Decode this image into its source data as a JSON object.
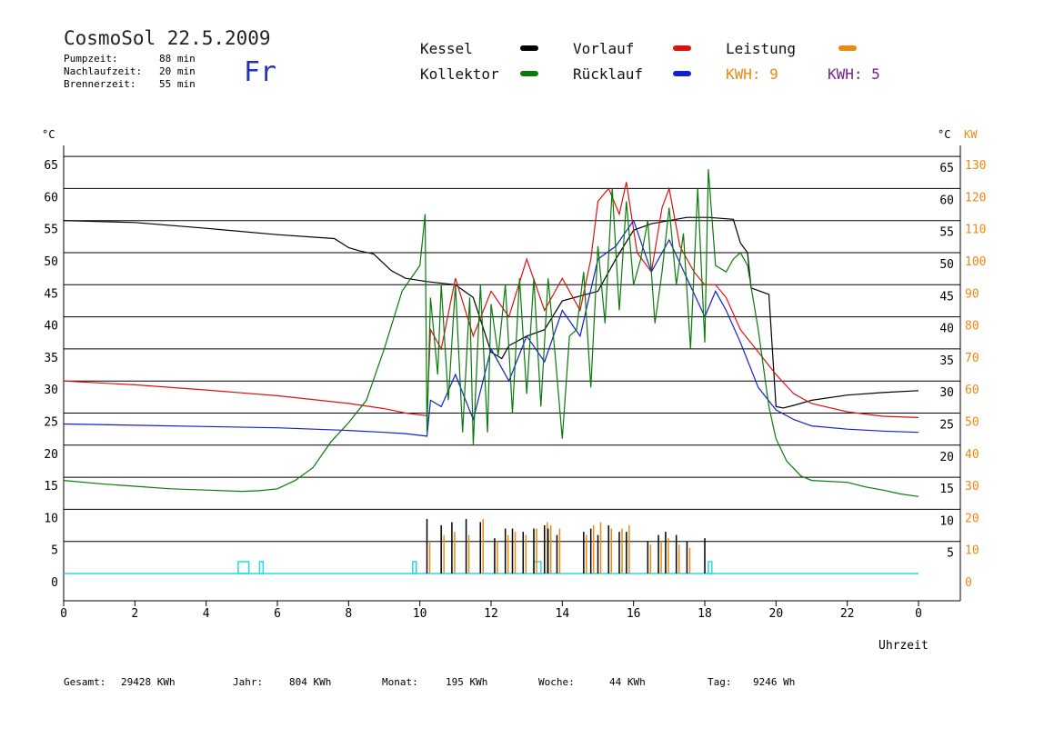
{
  "header": {
    "title": "CosmoSol 22.5.2009",
    "weekday": "Fr",
    "stats": [
      {
        "label": "Pumpzeit:",
        "value": "88 min"
      },
      {
        "label": "Nachlaufzeit:",
        "value": "20 min"
      },
      {
        "label": "Brennerzeit:",
        "value": "55 min"
      }
    ]
  },
  "legend": {
    "kessel": "Kessel",
    "kollektor": "Kollektor",
    "vorlauf": "Vorlauf",
    "ruecklauf": "Rücklauf",
    "leistung": "Leistung",
    "kwh_a": "KWH: 9",
    "kwh_b": "KWH: 5"
  },
  "colors": {
    "kessel": "#000000",
    "kollektor": "#0a7a0a",
    "vorlauf": "#dd1111",
    "ruecklauf": "#1122cc",
    "leistung": "#ee8811",
    "kwh_b": "#772288",
    "pump": "#22dddd",
    "grid": "#000000"
  },
  "footer": [
    {
      "label": "Gesamt:",
      "value": "29428 KWh"
    },
    {
      "label": "Jahr:",
      "value": "804 KWh"
    },
    {
      "label": "Monat:",
      "value": "195 KWh"
    },
    {
      "label": "Woche:",
      "value": "44 KWh"
    },
    {
      "label": "Tag:",
      "value": "9246 Wh"
    }
  ],
  "chart_data": {
    "type": "line",
    "xlabel": "Uhrzeit",
    "ylabel_left": "°C",
    "ylabel_right": "°C",
    "ylabel_right2": "KW",
    "xlim": [
      0,
      24
    ],
    "ylim": [
      -5,
      70
    ],
    "x_ticks": [
      "0",
      "2",
      "4",
      "6",
      "8",
      "10",
      "12",
      "14",
      "16",
      "18",
      "20",
      "22",
      "0"
    ],
    "y_ticks_left": [
      0,
      5,
      10,
      15,
      20,
      25,
      30,
      35,
      40,
      45,
      50,
      55,
      60,
      65
    ],
    "y_ticks_right_c": [
      5,
      10,
      15,
      20,
      25,
      30,
      35,
      40,
      45,
      50,
      55,
      60,
      65
    ],
    "y_ticks_right_kw": [
      0,
      10,
      20,
      30,
      40,
      50,
      60,
      70,
      80,
      90,
      100,
      110,
      120,
      130
    ],
    "grid": true,
    "series": [
      {
        "name": "Kessel",
        "key": "kessel",
        "x": [
          0,
          2,
          4,
          6,
          7.6,
          8.0,
          8.3,
          8.7,
          9.2,
          9.6,
          10.2,
          11,
          11.5,
          12,
          12.3,
          12.5,
          13,
          13.5,
          14,
          15,
          15.5,
          16,
          16.5,
          17,
          17.5,
          18.1,
          18.8,
          19.0,
          19.2,
          19.3,
          19.8,
          20.0,
          20.2,
          20.5,
          21,
          22,
          23,
          24
        ],
        "y": [
          55,
          54.7,
          53.8,
          52.8,
          52.2,
          50.8,
          50.3,
          49.8,
          47.2,
          46.0,
          45.5,
          45.0,
          43.0,
          34.5,
          33.5,
          35.5,
          37.0,
          38.0,
          42.5,
          44.0,
          49.0,
          53.5,
          54.5,
          55.0,
          55.5,
          55.5,
          55.2,
          51.5,
          50.0,
          44.5,
          43.5,
          26.0,
          25.8,
          26.2,
          27.0,
          27.8,
          28.2,
          28.5
        ]
      },
      {
        "name": "Vorlauf",
        "key": "vorlauf",
        "x": [
          0,
          2,
          4,
          6,
          8,
          9.0,
          9.6,
          10.2,
          10.3,
          10.6,
          11,
          11.5,
          12,
          12.5,
          13,
          13.5,
          14,
          14.5,
          14.8,
          15.0,
          15.3,
          15.6,
          15.8,
          16.1,
          16.5,
          16.8,
          17.0,
          17.3,
          17.7,
          18.0,
          18.3,
          18.6,
          19,
          19.5,
          20,
          20.5,
          21,
          22,
          23,
          24
        ],
        "y": [
          30,
          29.4,
          28.6,
          27.7,
          26.5,
          25.7,
          25.0,
          24.6,
          38,
          35,
          46,
          37,
          44,
          40,
          49,
          41,
          46,
          41,
          49,
          58,
          60,
          56,
          61,
          50,
          47,
          57,
          60,
          51,
          47,
          45,
          45,
          43,
          38,
          34.5,
          31,
          28,
          26.5,
          25.2,
          24.5,
          24.3
        ]
      },
      {
        "name": "Rücklauf",
        "key": "ruecklauf",
        "x": [
          0,
          2,
          4,
          6,
          8,
          9.0,
          9.6,
          10.2,
          10.3,
          10.6,
          11,
          11.5,
          12,
          12.5,
          13,
          13.5,
          14,
          14.5,
          15,
          15.5,
          16,
          16.5,
          17,
          17.5,
          18,
          18.3,
          18.6,
          19,
          19.5,
          20,
          20.5,
          21,
          22,
          23,
          24
        ],
        "y": [
          23.3,
          23.1,
          22.9,
          22.7,
          22.3,
          22.0,
          21.8,
          21.4,
          27,
          26,
          31,
          24,
          35,
          30,
          37,
          33,
          41,
          37,
          49,
          51,
          55,
          47,
          52,
          46,
          40,
          44,
          41,
          36,
          29,
          25.5,
          24,
          23,
          22.5,
          22.2,
          22.0
        ]
      },
      {
        "name": "Kollektor",
        "key": "kollektor",
        "x": [
          0,
          1,
          2,
          3,
          4,
          5,
          5.5,
          6,
          6.5,
          7,
          7.5,
          8,
          8.5,
          9.0,
          9.5,
          10.0,
          10.15,
          10.2,
          10.3,
          10.5,
          10.6,
          10.8,
          11,
          11.2,
          11.4,
          11.5,
          11.7,
          11.9,
          12.0,
          12.2,
          12.4,
          12.6,
          12.8,
          13.0,
          13.2,
          13.4,
          13.6,
          13.8,
          14.0,
          14.2,
          14.4,
          14.6,
          14.8,
          15.0,
          15.2,
          15.4,
          15.6,
          15.8,
          16.0,
          16.2,
          16.4,
          16.6,
          16.8,
          17.0,
          17.2,
          17.4,
          17.6,
          17.8,
          18.0,
          18.1,
          18.3,
          18.6,
          18.8,
          19.0,
          19.2,
          19.5,
          19.8,
          20.0,
          20.3,
          20.7,
          21,
          22,
          22.5,
          23,
          23.5,
          24
        ],
        "y": [
          14.5,
          14,
          13.6,
          13.2,
          13,
          12.8,
          12.9,
          13.2,
          14.5,
          16.5,
          20.5,
          23.5,
          27,
          35,
          44,
          48,
          56,
          22,
          43,
          31,
          45,
          27,
          45,
          22,
          43,
          20,
          45,
          22,
          42,
          34,
          45,
          25,
          46,
          28,
          46,
          26,
          46,
          34,
          21,
          37,
          38,
          47,
          29,
          51,
          39,
          60,
          41,
          58,
          45,
          49,
          55,
          39,
          47,
          57,
          45,
          53,
          35,
          60,
          36,
          63,
          48,
          47,
          49,
          50,
          48,
          38,
          26,
          21,
          17.5,
          15.2,
          14.5,
          14.2,
          13.5,
          13,
          12.4,
          12
        ]
      }
    ],
    "leistung_bars": {
      "x": [
        10.2,
        10.6,
        10.9,
        11.3,
        11.7,
        12.1,
        12.4,
        12.6,
        12.9,
        13.2,
        13.5,
        13.6,
        13.85,
        14.6,
        14.8,
        15.0,
        15.3,
        15.6,
        15.8,
        16.4,
        16.7,
        16.9,
        17.2,
        17.5,
        18.0
      ],
      "kessel": [
        17,
        15,
        16,
        17,
        16,
        11,
        14,
        14,
        13,
        14,
        15,
        14,
        12,
        13,
        14,
        12,
        15,
        13,
        13,
        10,
        12,
        13,
        12,
        10,
        11
      ],
      "leistung": [
        10,
        12,
        13,
        12,
        17,
        10,
        12,
        13,
        12,
        14,
        16,
        15,
        14,
        12,
        15,
        16,
        14,
        14,
        15,
        9,
        10,
        11,
        9,
        8,
        0
      ]
    },
    "pump_blocks": [
      {
        "start": 4.9,
        "end": 5.2
      },
      {
        "start": 5.5,
        "end": 5.6
      },
      {
        "start": 9.8,
        "end": 9.9
      },
      {
        "start": 13.2,
        "end": 13.4
      },
      {
        "start": 18.1,
        "end": 18.2
      }
    ]
  }
}
